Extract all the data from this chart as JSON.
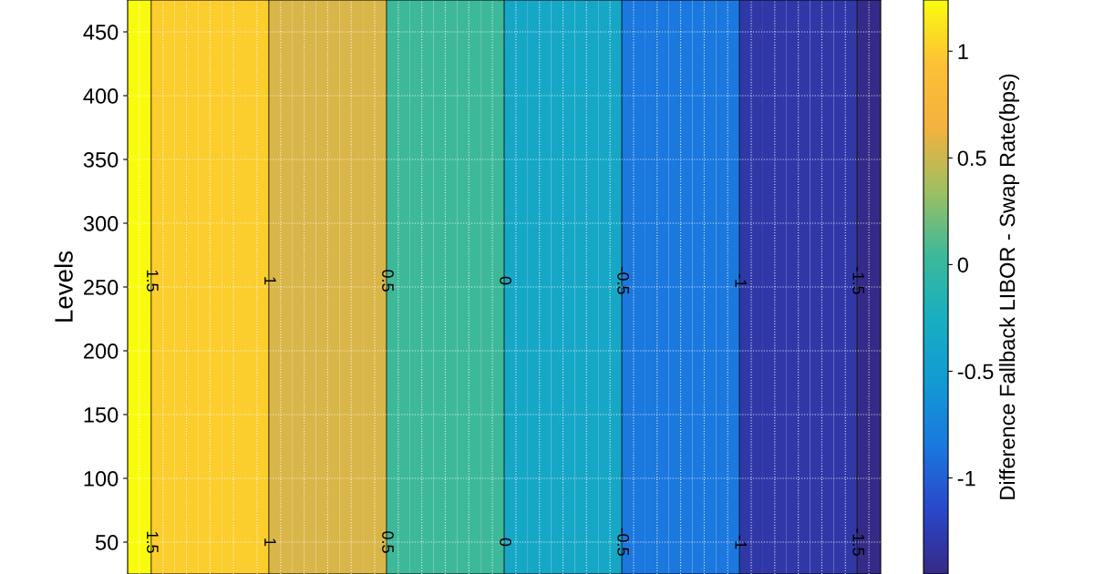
{
  "chart_data": {
    "type": "heatmap",
    "ylabel": "Levels",
    "clabel": "Difference Fallback LIBOR - Swap Rate(bps)",
    "categories": [
      null,
      null,
      null,
      null,
      null,
      null,
      null,
      null,
      null,
      null,
      null,
      null,
      null,
      null,
      null,
      null,
      null,
      null,
      null,
      null,
      null,
      null,
      null,
      null,
      null,
      null,
      null,
      null,
      null,
      null,
      null,
      null
    ],
    "y_categories": [
      "450",
      "400",
      "350",
      "300",
      "250",
      "200",
      "150",
      "100",
      "50"
    ],
    "cells": [
      [
        1.24,
        1.0,
        1.0,
        1.0,
        1.0,
        1.0,
        0.55,
        0.55,
        0.55,
        0.55,
        0.55,
        0.05,
        0.05,
        0.05,
        0.05,
        0.05,
        -0.35,
        -0.35,
        -0.35,
        -0.35,
        -0.35,
        -0.85,
        -0.85,
        -0.85,
        -0.85,
        -0.85,
        -1.3,
        -1.3,
        -1.3,
        -1.3,
        -1.3,
        -1.45
      ],
      [
        1.24,
        1.0,
        1.0,
        1.0,
        1.0,
        1.0,
        0.55,
        0.55,
        0.55,
        0.55,
        0.55,
        0.05,
        0.05,
        0.05,
        0.05,
        0.05,
        -0.35,
        -0.35,
        -0.35,
        -0.35,
        -0.35,
        -0.85,
        -0.85,
        -0.85,
        -0.85,
        -0.85,
        -1.3,
        -1.3,
        -1.3,
        -1.3,
        -1.3,
        -1.45
      ],
      [
        1.24,
        1.0,
        1.0,
        1.0,
        1.0,
        1.0,
        0.55,
        0.55,
        0.55,
        0.55,
        0.55,
        0.05,
        0.05,
        0.05,
        0.05,
        0.05,
        -0.35,
        -0.35,
        -0.35,
        -0.35,
        -0.35,
        -0.85,
        -0.85,
        -0.85,
        -0.85,
        -0.85,
        -1.3,
        -1.3,
        -1.3,
        -1.3,
        -1.3,
        -1.45
      ],
      [
        1.24,
        1.0,
        1.0,
        1.0,
        1.0,
        1.0,
        0.55,
        0.55,
        0.55,
        0.55,
        0.55,
        0.05,
        0.05,
        0.05,
        0.05,
        0.05,
        -0.35,
        -0.35,
        -0.35,
        -0.35,
        -0.35,
        -0.85,
        -0.85,
        -0.85,
        -0.85,
        -0.85,
        -1.3,
        -1.3,
        -1.3,
        -1.3,
        -1.3,
        -1.45
      ],
      [
        1.24,
        1.0,
        1.0,
        1.0,
        1.0,
        1.0,
        0.55,
        0.55,
        0.55,
        0.55,
        0.55,
        0.05,
        0.05,
        0.05,
        0.05,
        0.05,
        -0.35,
        -0.35,
        -0.35,
        -0.35,
        -0.35,
        -0.85,
        -0.85,
        -0.85,
        -0.85,
        -0.85,
        -1.3,
        -1.3,
        -1.3,
        -1.3,
        -1.3,
        -1.45
      ],
      [
        1.24,
        1.0,
        1.0,
        1.0,
        1.0,
        1.0,
        0.55,
        0.55,
        0.55,
        0.55,
        0.55,
        0.05,
        0.05,
        0.05,
        0.05,
        0.05,
        -0.35,
        -0.35,
        -0.35,
        -0.35,
        -0.35,
        -0.85,
        -0.85,
        -0.85,
        -0.85,
        -0.85,
        -1.3,
        -1.3,
        -1.3,
        -1.3,
        -1.3,
        -1.45
      ],
      [
        1.24,
        1.0,
        1.0,
        1.0,
        1.0,
        1.0,
        0.55,
        0.55,
        0.55,
        0.55,
        0.55,
        0.05,
        0.05,
        0.05,
        0.05,
        0.05,
        -0.35,
        -0.35,
        -0.35,
        -0.35,
        -0.35,
        -0.85,
        -0.85,
        -0.85,
        -0.85,
        -0.85,
        -1.3,
        -1.3,
        -1.3,
        -1.3,
        -1.3,
        -1.45
      ],
      [
        1.24,
        1.0,
        1.0,
        1.0,
        1.0,
        1.0,
        0.55,
        0.55,
        0.55,
        0.55,
        0.55,
        0.05,
        0.05,
        0.05,
        0.05,
        0.05,
        -0.35,
        -0.35,
        -0.35,
        -0.35,
        -0.35,
        -0.85,
        -0.85,
        -0.85,
        -0.85,
        -0.85,
        -1.3,
        -1.3,
        -1.3,
        -1.3,
        -1.3,
        -1.45
      ],
      [
        1.24,
        1.0,
        1.0,
        1.0,
        1.0,
        1.0,
        0.55,
        0.55,
        0.55,
        0.55,
        0.55,
        0.05,
        0.05,
        0.05,
        0.05,
        0.05,
        -0.35,
        -0.35,
        -0.35,
        -0.35,
        -0.35,
        -0.85,
        -0.85,
        -0.85,
        -0.85,
        -0.85,
        -1.3,
        -1.3,
        -1.3,
        -1.3,
        -1.3,
        -1.45
      ]
    ],
    "clim": [
      -1.45,
      1.24
    ],
    "cticks": [
      -1,
      -0.5,
      0,
      0.5,
      1
    ],
    "grid": true,
    "annotations": [
      "1.5",
      "1",
      "0.5",
      "0",
      "-0.5",
      "-1",
      "-1.5",
      "1.5",
      "1",
      "0.5",
      "0",
      "-0.5",
      "-1",
      "-1.5"
    ]
  }
}
